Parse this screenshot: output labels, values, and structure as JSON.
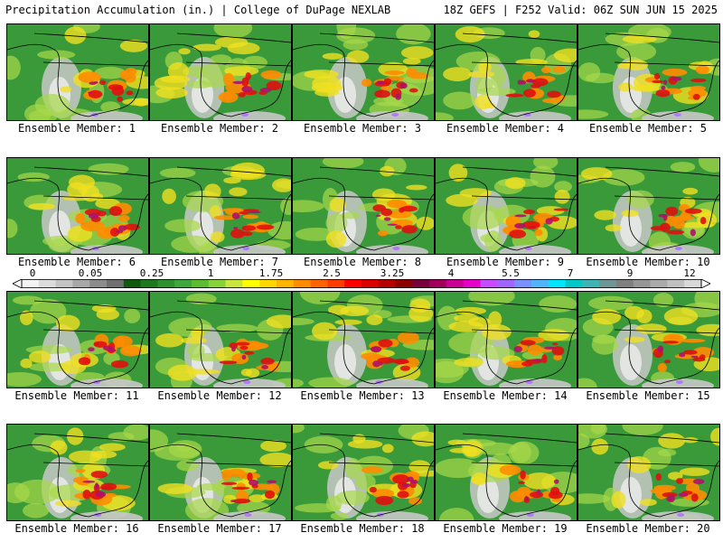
{
  "header": {
    "title": "Precipitation Accumulation (in.) | College of DuPage NEXLAB",
    "valid": "18Z GEFS | F252 Valid: 06Z SUN JUN 15 2025"
  },
  "members": [
    {
      "label": "Ensemble Member: 1"
    },
    {
      "label": "Ensemble Member: 2"
    },
    {
      "label": "Ensemble Member: 3"
    },
    {
      "label": "Ensemble Member: 4"
    },
    {
      "label": "Ensemble Member: 5"
    },
    {
      "label": "Ensemble Member: 6"
    },
    {
      "label": "Ensemble Member: 7"
    },
    {
      "label": "Ensemble Member: 8"
    },
    {
      "label": "Ensemble Member: 9"
    },
    {
      "label": "Ensemble Member: 10"
    },
    {
      "label": "Ensemble Member: 11"
    },
    {
      "label": "Ensemble Member: 12"
    },
    {
      "label": "Ensemble Member: 13"
    },
    {
      "label": "Ensemble Member: 14"
    },
    {
      "label": "Ensemble Member: 15"
    },
    {
      "label": "Ensemble Member: 16"
    },
    {
      "label": "Ensemble Member: 17"
    },
    {
      "label": "Ensemble Member: 18"
    },
    {
      "label": "Ensemble Member: 19"
    },
    {
      "label": "Ensemble Member: 20"
    }
  ],
  "colorbar": {
    "ticks": [
      "0",
      "0.05",
      "0.25",
      "1",
      "1.75",
      "2.5",
      "3.25",
      "4",
      "5.5",
      "7",
      "9",
      "12"
    ],
    "colors": [
      "#f4f4f4",
      "#dcdcdc",
      "#c4c4c4",
      "#a8a8a8",
      "#8c8c8c",
      "#707070",
      "#0f5a0f",
      "#1e781e",
      "#2d912d",
      "#3ea83e",
      "#5bbd32",
      "#8ad23a",
      "#c8e63c",
      "#ffff00",
      "#ffd700",
      "#ffb400",
      "#ff8c00",
      "#ff6400",
      "#ff3c00",
      "#ff0000",
      "#dc0000",
      "#b40000",
      "#8c0000",
      "#78003c",
      "#a0005a",
      "#c80096",
      "#e600c8",
      "#c84bff",
      "#a064ff",
      "#7891ff",
      "#50b4ff",
      "#00e6ff",
      "#00c8c8",
      "#40b4b4",
      "#6e9696",
      "#808080",
      "#969696",
      "#aaaaaa",
      "#c0c0c0",
      "#d8d8d8"
    ]
  },
  "map_palette": {
    "land": "#3a9a3a",
    "ocean_dry": "#c8c8c8",
    "light": "#a8d84a",
    "moderate": "#f0e020",
    "heavy": "#ff8c00",
    "very_heavy": "#e01010",
    "extreme": "#b0106a",
    "peak": "#b070ff",
    "boundary": "#000000"
  }
}
